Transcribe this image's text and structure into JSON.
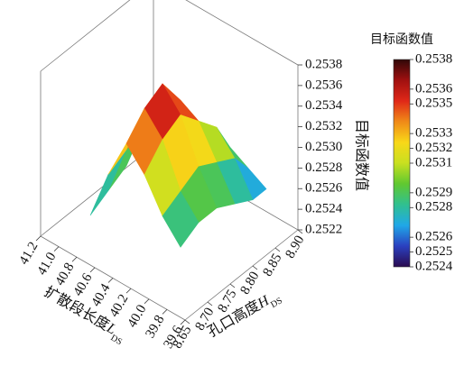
{
  "chart_data": {
    "type": "surface",
    "x_label": {
      "text": "扩散段长度",
      "var": "L",
      "sub": "DS"
    },
    "y_label": {
      "text": "孔口高度",
      "var": "H",
      "sub": "DS"
    },
    "z_label": "目标函数值",
    "colorbar_title": "目标函数值",
    "x": [
      39.8,
      40.0,
      40.2,
      40.4,
      40.6,
      40.8
    ],
    "y": [
      8.68,
      8.72,
      8.76,
      8.8,
      8.84,
      8.87
    ],
    "z": [
      [
        0.2527,
        0.2529,
        0.2532,
        0.2534,
        0.253,
        0.2525
      ],
      [
        0.2528,
        0.253,
        0.2534,
        0.2536,
        0.2531,
        0.2526
      ],
      [
        0.2528,
        0.2531,
        0.2535,
        0.2537,
        0.2532,
        0.2527
      ],
      [
        0.2527,
        0.253,
        0.2533,
        0.2534,
        0.253,
        null
      ],
      [
        0.2526,
        0.2529,
        0.2531,
        0.253,
        null,
        null
      ],
      [
        0.2526,
        0.2527,
        0.2528,
        null,
        null,
        null
      ]
    ],
    "xlim": [
      39.6,
      41.2
    ],
    "xticks": [
      39.6,
      39.8,
      {
        "value": 40.0,
        "label": "40.0"
      },
      40.2,
      40.4,
      40.6,
      40.8,
      {
        "value": 41.0,
        "label": "41.0"
      },
      41.2
    ],
    "ylim": [
      8.65,
      8.9
    ],
    "yticks": [
      8.65,
      {
        "value": 8.7,
        "label": "8.70"
      },
      8.75,
      {
        "value": 8.8,
        "label": "8.80"
      },
      8.85,
      {
        "value": 8.9,
        "label": "8.90"
      }
    ],
    "zlim": [
      0.2522,
      0.2538
    ],
    "zticks": [
      0.2522,
      0.2524,
      0.2526,
      0.2528,
      {
        "value": 0.253,
        "label": "0.2530"
      },
      0.2532,
      0.2534,
      0.2536,
      0.2538
    ],
    "clim": [
      0.2524,
      0.2538
    ],
    "colorbar_ticks": [
      0.2538,
      0.2536,
      0.2535,
      0.2533,
      0.2532,
      0.2531,
      0.2529,
      0.2528,
      0.2526,
      0.2525,
      0.2524
    ],
    "colormap": [
      "#2a0a50",
      "#2a40c0",
      "#20a8e8",
      "#30c090",
      "#60c830",
      "#c8e020",
      "#f8d818",
      "#f08a18",
      "#e02818",
      "#a01010",
      "#300808"
    ]
  }
}
